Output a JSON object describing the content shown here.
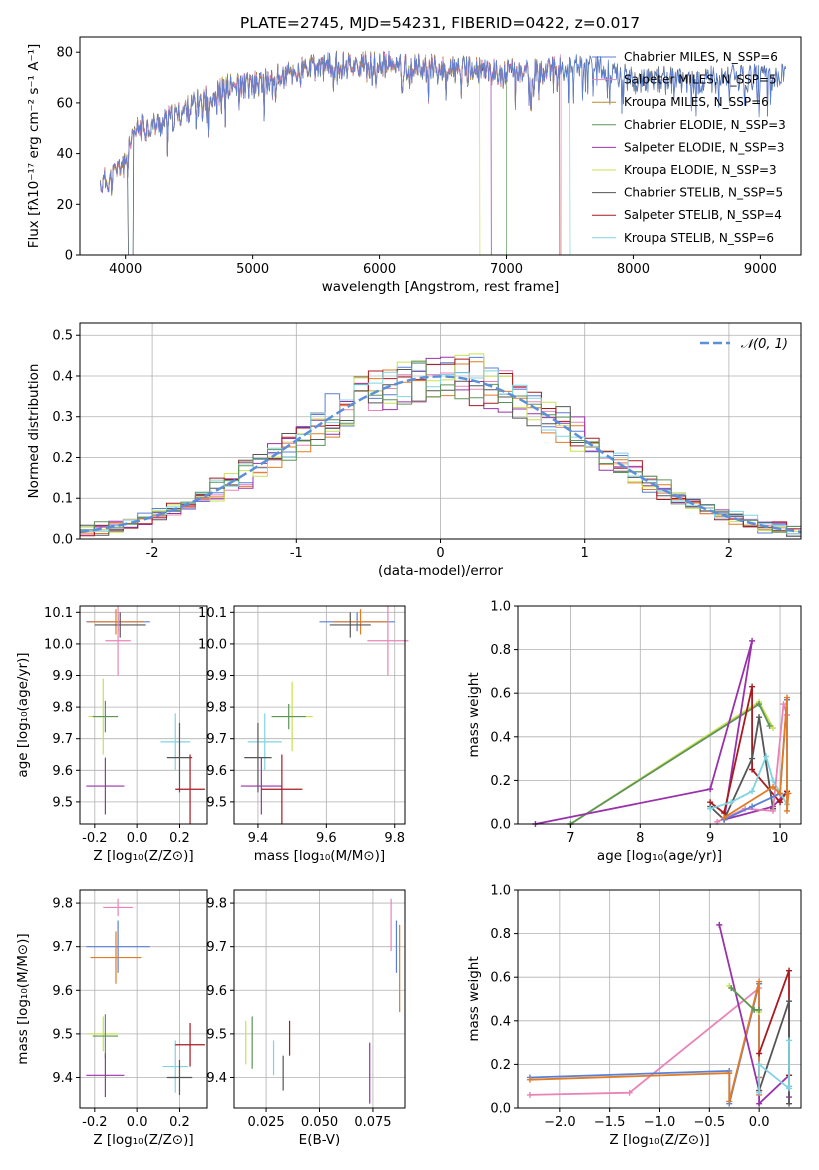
{
  "title": "PLATE=2745, MJD=54231, FIBERID=0422, z=0.017",
  "colors": {
    "blue": "#5a7fd6",
    "orange": "#e07b26",
    "olive": "#bb8a2e",
    "green": "#5d9459",
    "purple": "#9932aa",
    "yellowgreen": "#c9e052",
    "gray": "#555555",
    "red": "#a81a20",
    "cyan": "#7fd4e0",
    "pink": "#e884b8",
    "grid": "#b0b0b0",
    "normal": "#5b8fd9"
  },
  "chart_data": [
    {
      "id": "spectrum",
      "type": "line",
      "xlabel": "wavelength [Angstrom, rest frame]",
      "ylabel": "Flux [fλ10⁻¹⁷ erg cm⁻² s⁻¹ A⁻¹]",
      "xlim": [
        3640,
        9320
      ],
      "ylim": [
        0,
        86
      ],
      "grid": false,
      "xticks": [
        4000,
        5000,
        6000,
        7000,
        8000,
        9000
      ],
      "yticks": [
        0,
        20,
        40,
        60,
        80
      ],
      "legend_position": "top-right",
      "series": [
        {
          "name": "Chabrier MILES, N_SSP=6",
          "color": "#5a7fd6"
        },
        {
          "name": "Salpeter MILES, N_SSP=5",
          "color": "#e884b8"
        },
        {
          "name": "Kroupa MILES, N_SSP=6",
          "color": "#bb8a2e"
        },
        {
          "name": "Chabrier ELODIE, N_SSP=3",
          "color": "#5d9459"
        },
        {
          "name": "Salpeter ELODIE, N_SSP=3",
          "color": "#9932aa"
        },
        {
          "name": "Kroupa ELODIE, N_SSP=3",
          "color": "#c9e052"
        },
        {
          "name": "Chabrier STELIB, N_SSP=5",
          "color": "#555555"
        },
        {
          "name": "Salpeter STELIB, N_SSP=4",
          "color": "#a81a20"
        },
        {
          "name": "Kroupa STELIB, N_SSP=6",
          "color": "#7fd4e0"
        }
      ],
      "continuum": [
        [
          3800,
          28
        ],
        [
          3900,
          31
        ],
        [
          4000,
          38
        ],
        [
          4050,
          44
        ],
        [
          4100,
          50
        ],
        [
          4300,
          52
        ],
        [
          4500,
          58
        ],
        [
          4800,
          66
        ],
        [
          5100,
          68
        ],
        [
          5400,
          73
        ],
        [
          5700,
          75
        ],
        [
          6000,
          75
        ],
        [
          6300,
          74
        ],
        [
          6600,
          73
        ],
        [
          7000,
          72
        ],
        [
          7300,
          72
        ],
        [
          7500,
          75
        ],
        [
          7700,
          74
        ],
        [
          8000,
          69
        ],
        [
          8500,
          69
        ],
        [
          9000,
          70
        ],
        [
          9200,
          70
        ]
      ]
    },
    {
      "id": "residuals",
      "type": "histogram",
      "xlabel": "(data-model)/error",
      "ylabel": "Normed distribution",
      "xlim": [
        -2.5,
        2.5
      ],
      "ylim": [
        0,
        0.53
      ],
      "grid": true,
      "xticks": [
        -2,
        -1,
        0,
        1,
        2
      ],
      "yticks": [
        0.0,
        0.1,
        0.2,
        0.3,
        0.4,
        0.5
      ],
      "legend": " 𝒩(0, 1)",
      "legend_position": "top-right",
      "bin_width": 0.1
    },
    {
      "id": "age_vs_Z",
      "type": "scatter",
      "xlabel": "Z [log₁₀(Z/Z⊙)]",
      "ylabel": "age  [log₁₀(age/yr)]",
      "xlim": [
        -0.27,
        0.33
      ],
      "ylim": [
        9.43,
        10.12
      ],
      "grid": true,
      "xticks": [
        -0.2,
        0.0,
        0.2
      ],
      "yticks": [
        9.5,
        9.6,
        9.7,
        9.8,
        9.9,
        10.0,
        10.1
      ],
      "points": [
        {
          "x": -0.09,
          "y": 10.07,
          "xerr": 0.15,
          "yerr": 0.03,
          "color": "#5a7fd6"
        },
        {
          "x": -0.1,
          "y": 10.07,
          "xerr": 0.13,
          "yerr": 0.04,
          "color": "#e07b26"
        },
        {
          "x": -0.08,
          "y": 10.06,
          "xerr": 0.12,
          "yerr": 0.04,
          "color": "#555555"
        },
        {
          "x": -0.09,
          "y": 10.01,
          "xerr": 0.06,
          "yerr": 0.11,
          "color": "#e884b8"
        },
        {
          "x": -0.16,
          "y": 9.77,
          "xerr": 0.07,
          "yerr": 0.12,
          "color": "#c9e052"
        },
        {
          "x": -0.15,
          "y": 9.77,
          "xerr": 0.06,
          "yerr": 0.05,
          "color": "#5d9459"
        },
        {
          "x": 0.18,
          "y": 9.69,
          "xerr": 0.07,
          "yerr": 0.09,
          "color": "#7fd4e0"
        },
        {
          "x": 0.2,
          "y": 9.64,
          "xerr": 0.06,
          "yerr": 0.11,
          "color": "#555555"
        },
        {
          "x": -0.15,
          "y": 9.55,
          "xerr": 0.09,
          "yerr": 0.09,
          "color": "#9932aa"
        },
        {
          "x": 0.25,
          "y": 9.54,
          "xerr": 0.07,
          "yerr": 0.11,
          "color": "#a81a20"
        }
      ]
    },
    {
      "id": "age_vs_mass",
      "type": "scatter",
      "xlabel": "mass [log₁₀(M/M⊙)]",
      "ylabel": "",
      "xlim": [
        9.33,
        9.83
      ],
      "ylim": [
        9.43,
        10.12
      ],
      "grid": true,
      "xticks": [
        9.4,
        9.6,
        9.8
      ],
      "yticks": [
        9.5,
        9.6,
        9.7,
        9.8,
        9.9,
        10.0,
        10.1
      ],
      "points": [
        {
          "x": 9.69,
          "y": 10.07,
          "xerr": 0.11,
          "yerr": 0.03,
          "color": "#5a7fd6"
        },
        {
          "x": 9.7,
          "y": 10.07,
          "xerr": 0.08,
          "yerr": 0.04,
          "color": "#e07b26"
        },
        {
          "x": 9.67,
          "y": 10.06,
          "xerr": 0.06,
          "yerr": 0.04,
          "color": "#555555"
        },
        {
          "x": 9.78,
          "y": 10.01,
          "xerr": 0.06,
          "yerr": 0.11,
          "color": "#e884b8"
        },
        {
          "x": 9.5,
          "y": 9.77,
          "xerr": 0.06,
          "yerr": 0.11,
          "color": "#c9e052"
        },
        {
          "x": 9.49,
          "y": 9.77,
          "xerr": 0.05,
          "yerr": 0.04,
          "color": "#5d9459"
        },
        {
          "x": 9.42,
          "y": 9.69,
          "xerr": 0.05,
          "yerr": 0.09,
          "color": "#7fd4e0"
        },
        {
          "x": 9.4,
          "y": 9.64,
          "xerr": 0.04,
          "yerr": 0.11,
          "color": "#555555"
        },
        {
          "x": 9.41,
          "y": 9.55,
          "xerr": 0.06,
          "yerr": 0.09,
          "color": "#9932aa"
        },
        {
          "x": 9.47,
          "y": 9.54,
          "xerr": 0.06,
          "yerr": 0.11,
          "color": "#a81a20"
        }
      ]
    },
    {
      "id": "massweight_vs_age",
      "type": "line",
      "xlabel": "age  [log₁₀(age/yr)]",
      "ylabel": "mass weight",
      "xlim": [
        6.25,
        10.3
      ],
      "ylim": [
        0,
        1.0
      ],
      "grid": true,
      "xticks": [
        7,
        8,
        9,
        10
      ],
      "yticks": [
        0.0,
        0.2,
        0.4,
        0.6,
        0.8,
        1.0
      ],
      "series": [
        {
          "color": "#c9e052",
          "x": [
            7.0,
            9.7,
            9.9
          ],
          "y": [
            0.0,
            0.56,
            0.44
          ]
        },
        {
          "color": "#5d9459",
          "x": [
            7.0,
            9.7,
            9.85
          ],
          "y": [
            0.0,
            0.55,
            0.45
          ]
        },
        {
          "color": "#9932aa",
          "x": [
            6.5,
            9.0,
            9.6,
            9.2,
            9.9,
            10.1
          ],
          "y": [
            0.0,
            0.16,
            0.84,
            0.02,
            0.08,
            0.15
          ]
        },
        {
          "color": "#a81a20",
          "x": [
            9.0,
            9.2,
            9.6,
            9.6,
            10.0,
            10.1
          ],
          "y": [
            0.1,
            0.05,
            0.63,
            0.25,
            0.1,
            0.15
          ]
        },
        {
          "color": "#555555",
          "x": [
            9.0,
            9.2,
            9.6,
            9.7,
            9.9
          ],
          "y": [
            0.08,
            0.02,
            0.3,
            0.49,
            0.07
          ]
        },
        {
          "color": "#7fd4e0",
          "x": [
            9.0,
            9.3,
            9.6,
            9.8,
            9.9,
            10.1
          ],
          "y": [
            0.07,
            0.1,
            0.15,
            0.31,
            0.2,
            0.09
          ]
        },
        {
          "color": "#e884b8",
          "x": [
            9.1,
            9.5,
            9.9,
            10.05,
            10.1
          ],
          "y": [
            0.01,
            0.07,
            0.06,
            0.55,
            0.5
          ]
        },
        {
          "color": "#5a7fd6",
          "x": [
            9.2,
            9.6,
            10.0,
            10.1,
            10.1
          ],
          "y": [
            0.02,
            0.08,
            0.14,
            0.57,
            0.14
          ]
        },
        {
          "color": "#e07b26",
          "x": [
            9.2,
            9.9,
            10.0,
            10.1,
            10.1,
            10.12
          ],
          "y": [
            0.03,
            0.17,
            0.14,
            0.58,
            0.06,
            0.14
          ]
        }
      ]
    },
    {
      "id": "mass_vs_Z",
      "type": "scatter",
      "xlabel": "Z [log₁₀(Z/Z⊙)]",
      "ylabel": "mass [log₁₀(M/M⊙)]",
      "xlim": [
        -0.27,
        0.33
      ],
      "ylim": [
        9.33,
        9.83
      ],
      "grid": true,
      "xticks": [
        -0.2,
        0.0,
        0.2
      ],
      "yticks": [
        9.4,
        9.5,
        9.6,
        9.7,
        9.8
      ],
      "points": [
        {
          "x": -0.09,
          "y": 9.7,
          "xerr": 0.15,
          "yerr": 0.06,
          "color": "#5a7fd6"
        },
        {
          "x": -0.1,
          "y": 9.675,
          "xerr": 0.12,
          "yerr": 0.06,
          "color": "#e07b26"
        },
        {
          "x": -0.09,
          "y": 9.79,
          "xerr": 0.07,
          "yerr": 0.02,
          "color": "#e884b8"
        },
        {
          "x": -0.16,
          "y": 9.5,
          "xerr": 0.07,
          "yerr": 0.04,
          "color": "#c9e052"
        },
        {
          "x": -0.15,
          "y": 9.495,
          "xerr": 0.06,
          "yerr": 0.05,
          "color": "#5d9459"
        },
        {
          "x": 0.18,
          "y": 9.425,
          "xerr": 0.06,
          "yerr": 0.06,
          "color": "#7fd4e0"
        },
        {
          "x": 0.2,
          "y": 9.4,
          "xerr": 0.06,
          "yerr": 0.04,
          "color": "#555555"
        },
        {
          "x": -0.15,
          "y": 9.405,
          "xerr": 0.09,
          "yerr": 0.05,
          "color": "#9932aa"
        },
        {
          "x": 0.25,
          "y": 9.475,
          "xerr": 0.07,
          "yerr": 0.05,
          "color": "#a81a20"
        }
      ]
    },
    {
      "id": "mass_vs_ebv",
      "type": "scatter",
      "xlabel": "E(B-V)",
      "ylabel": "",
      "xlim": [
        0.01,
        0.09
      ],
      "ylim": [
        9.33,
        9.83
      ],
      "grid": true,
      "xticks": [
        0.025,
        0.05,
        0.075
      ],
      "xticklabels": [
        "0.025",
        "0.050",
        "0.075"
      ],
      "yticks": [
        9.4,
        9.5,
        9.6,
        9.7,
        9.8
      ],
      "points": [
        {
          "x": 0.0155,
          "y": 9.48,
          "xerr": 0,
          "yerr": 0.05,
          "color": "#c9e052"
        },
        {
          "x": 0.0185,
          "y": 9.48,
          "xerr": 0,
          "yerr": 0.06,
          "color": "#5d9459"
        },
        {
          "x": 0.0285,
          "y": 9.445,
          "xerr": 0,
          "yerr": 0.04,
          "color": "#7fd4e0"
        },
        {
          "x": 0.033,
          "y": 9.41,
          "xerr": 0,
          "yerr": 0.04,
          "color": "#555555"
        },
        {
          "x": 0.036,
          "y": 9.49,
          "xerr": 0,
          "yerr": 0.04,
          "color": "#a81a20"
        },
        {
          "x": 0.0735,
          "y": 9.41,
          "xerr": 0,
          "yerr": 0.07,
          "color": "#9932aa"
        },
        {
          "x": 0.0835,
          "y": 9.75,
          "xerr": 0,
          "yerr": 0.06,
          "color": "#e884b8"
        },
        {
          "x": 0.086,
          "y": 9.7,
          "xerr": 0,
          "yerr": 0.06,
          "color": "#5a7fd6"
        },
        {
          "x": 0.0875,
          "y": 9.65,
          "xerr": 0,
          "yerr": 0.1,
          "color": "#e07b26"
        }
      ]
    },
    {
      "id": "massweight_vs_Z",
      "type": "line",
      "xlabel": "Z [log₁₀(Z/Z⊙)]",
      "ylabel": "mass weight",
      "xlim": [
        -2.42,
        0.42
      ],
      "ylim": [
        0,
        1.0
      ],
      "grid": true,
      "xticks": [
        -2.0,
        -1.5,
        -1.0,
        -0.5,
        0.0
      ],
      "yticks": [
        0.0,
        0.2,
        0.4,
        0.6,
        0.8,
        1.0
      ],
      "series": [
        {
          "color": "#e884b8",
          "x": [
            -2.3,
            -1.3,
            0.0,
            0.0
          ],
          "y": [
            0.06,
            0.07,
            0.55,
            0.2
          ]
        },
        {
          "color": "#5a7fd6",
          "x": [
            -2.3,
            -0.3,
            -0.3,
            0.0,
            0.0
          ],
          "y": [
            0.14,
            0.17,
            0.02,
            0.57,
            0.14
          ]
        },
        {
          "color": "#e07b26",
          "x": [
            -2.3,
            -0.3,
            -0.3,
            0.0,
            0.0,
            0.0
          ],
          "y": [
            0.13,
            0.16,
            0.03,
            0.58,
            0.14,
            0.06
          ]
        },
        {
          "color": "#9932aa",
          "x": [
            -0.4,
            0.0,
            0.0,
            0.3,
            0.3
          ],
          "y": [
            0.84,
            0.08,
            0.02,
            0.15,
            0.05
          ]
        },
        {
          "color": "#c9e052",
          "x": [
            -0.3,
            -0.05,
            0.0
          ],
          "y": [
            0.56,
            0.45,
            0.44
          ]
        },
        {
          "color": "#5d9459",
          "x": [
            -0.28,
            -0.05,
            0.0
          ],
          "y": [
            0.55,
            0.45,
            0.45
          ]
        },
        {
          "color": "#a81a20",
          "x": [
            0.0,
            0.3,
            0.3,
            0.3
          ],
          "y": [
            0.25,
            0.63,
            0.1,
            0.15
          ]
        },
        {
          "color": "#555555",
          "x": [
            0.0,
            0.3,
            0.3,
            0.3
          ],
          "y": [
            0.08,
            0.49,
            0.1,
            0.02
          ]
        },
        {
          "color": "#7fd4e0",
          "x": [
            0.0,
            0.0,
            0.3,
            0.3,
            0.3
          ],
          "y": [
            0.07,
            0.2,
            0.09,
            0.31,
            0.1
          ]
        }
      ]
    }
  ]
}
